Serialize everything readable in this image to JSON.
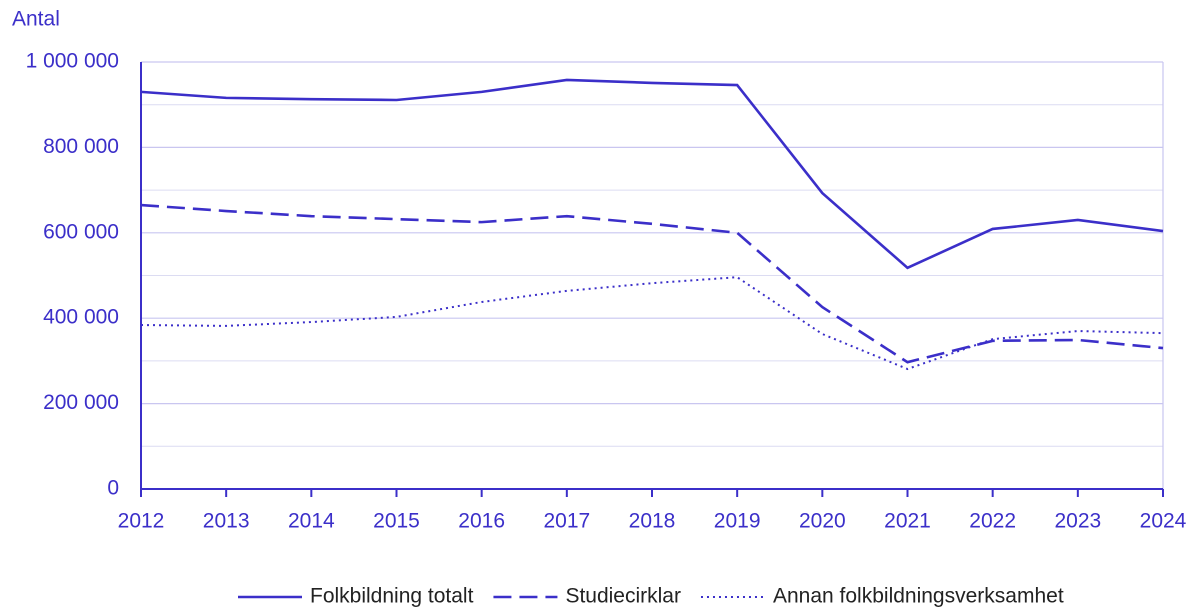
{
  "chart_data": {
    "type": "line",
    "y_label": "Antal",
    "x": [
      2012,
      2013,
      2014,
      2015,
      2016,
      2017,
      2018,
      2019,
      2020,
      2021,
      2022,
      2023,
      2024
    ],
    "xlim": [
      2012,
      2024
    ],
    "xticks": [
      2012,
      2013,
      2014,
      2015,
      2016,
      2017,
      2018,
      2019,
      2020,
      2021,
      2022,
      2023,
      2024
    ],
    "ylim": [
      0,
      1000000
    ],
    "yticks": [
      0,
      {
        "value": 200000,
        "label": "200 000"
      },
      {
        "value": 400000,
        "label": "400 000"
      },
      {
        "value": 600000,
        "label": "600 000"
      },
      {
        "value": 800000,
        "label": "800 000"
      },
      {
        "value": 1000000,
        "label": "1 000 000"
      }
    ],
    "minor_yticks": [
      100000,
      300000,
      500000,
      700000,
      900000
    ],
    "grid": true,
    "legend": "bottom",
    "series": [
      {
        "name": "Folkbildning totalt",
        "color": "#3b2fc9",
        "dash": "solid",
        "values": [
          930000,
          916000,
          913000,
          911000,
          930000,
          958000,
          951000,
          946000,
          693000,
          518000,
          609000,
          630000,
          604000
        ]
      },
      {
        "name": "Studiecirklar",
        "color": "#3b2fc9",
        "dash": "dashed",
        "values": [
          665000,
          651000,
          639000,
          632000,
          625000,
          639000,
          621000,
          600000,
          426000,
          297000,
          347000,
          349000,
          330000
        ]
      },
      {
        "name": "Annan folkbildningsverksamhet",
        "color": "#3b2fc9",
        "dash": "dotted",
        "values": [
          384000,
          382000,
          391000,
          403000,
          438000,
          464000,
          482000,
          496000,
          363000,
          281000,
          351000,
          370000,
          365000
        ]
      }
    ]
  }
}
